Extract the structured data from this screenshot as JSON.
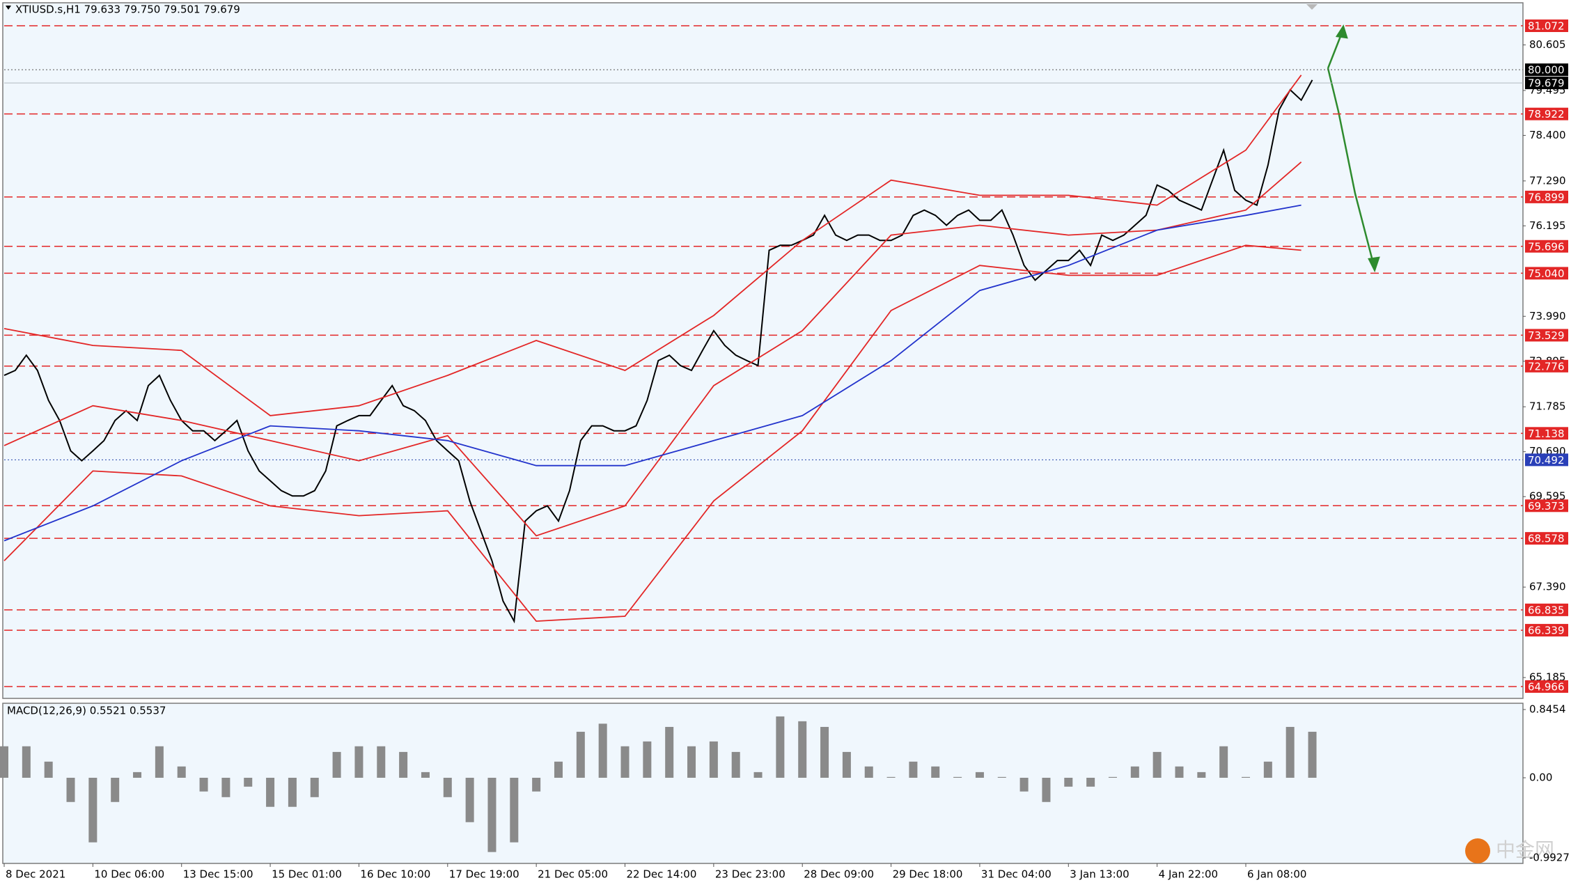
{
  "chart_data": [
    {
      "type": "line",
      "title": "XTIUSD.s,H1  79.633 79.750 79.501 79.679",
      "xlim": [
        0,
        137
      ],
      "ylim": [
        64.677,
        81.632
      ],
      "xticks": [
        {
          "value": 0,
          "label": "8 Dec 2021"
        },
        {
          "value": 8,
          "label": "10 Dec 06:00"
        },
        {
          "value": 16,
          "label": "13 Dec 15:00"
        },
        {
          "value": 24,
          "label": "15 Dec 01:00"
        },
        {
          "value": 32,
          "label": "16 Dec 10:00"
        },
        {
          "value": 40,
          "label": "17 Dec 19:00"
        },
        {
          "value": 48,
          "label": "21 Dec 05:00"
        },
        {
          "value": 56,
          "label": "22 Dec 14:00"
        },
        {
          "value": 64,
          "label": "23 Dec 23:00"
        },
        {
          "value": 72,
          "label": "28 Dec 09:00"
        },
        {
          "value": 80,
          "label": "29 Dec 18:00"
        },
        {
          "value": 88,
          "label": "31 Dec 04:00"
        },
        {
          "value": 96,
          "label": "3 Jan 13:00"
        },
        {
          "value": 104,
          "label": "4 Jan 22:00"
        },
        {
          "value": 112,
          "label": "6 Jan 08:00"
        }
      ],
      "yticks": [
        80.605,
        79.495,
        {
          "value": 78.4,
          "label": "78.400"
        },
        {
          "value": 77.29,
          "label": "77.290"
        },
        76.195,
        {
          "value": 73.99,
          "label": "73.990"
        },
        72.895,
        71.785,
        {
          "value": 70.69,
          "label": "70.690"
        },
        69.595,
        {
          "value": 67.39,
          "label": "67.390"
        },
        65.185
      ],
      "levels": [
        81.072,
        78.922,
        76.899,
        75.696,
        {
          "value": 75.04,
          "label": "75.040"
        },
        73.529,
        72.776,
        71.138,
        69.373,
        68.578,
        66.835,
        66.339,
        64.966
      ],
      "level_color": "#e32626",
      "marks": [
        {
          "value": 80,
          "label": "80.000"
        },
        79.679
      ],
      "blue_level": 70.492,
      "series": [
        {
          "color": "#000000",
          "values": [
            72.55,
            72.67,
            73.04,
            72.67,
            71.94,
            71.45,
            70.71,
            70.47,
            70.71,
            70.96,
            71.45,
            71.69,
            71.45,
            72.3,
            72.55,
            71.94,
            71.45,
            71.2,
            71.2,
            70.96,
            71.2,
            71.45,
            70.71,
            70.22,
            69.98,
            69.74,
            69.61,
            69.61,
            69.74,
            70.22,
            71.32,
            71.45,
            71.57,
            71.57,
            71.94,
            72.3,
            71.81,
            71.69,
            71.45,
            70.96,
            70.71,
            70.47,
            69.49,
            68.76,
            68.03,
            67.05,
            66.56,
            69.0,
            69.25,
            69.37,
            69.0,
            69.74,
            70.96,
            71.32,
            71.32,
            71.2,
            71.2,
            71.32,
            71.94,
            72.91,
            73.04,
            72.79,
            72.67,
            73.16,
            73.64,
            73.28,
            73.04,
            72.91,
            72.79,
            75.6,
            75.72,
            75.72,
            75.84,
            75.97,
            76.45,
            75.97,
            75.84,
            75.97,
            75.97,
            75.84,
            75.84,
            75.97,
            76.45,
            76.58,
            76.45,
            76.21,
            76.45,
            76.58,
            76.33,
            76.33,
            76.58,
            75.97,
            75.23,
            74.87,
            75.11,
            75.35,
            75.35,
            75.6,
            75.23,
            75.97,
            75.84,
            75.97,
            76.21,
            76.45,
            77.19,
            77.06,
            76.82,
            76.7,
            76.58,
            77.31,
            78.04,
            77.06,
            76.82,
            76.7,
            77.67,
            79.02,
            79.51,
            79.26,
            79.75
          ]
        },
        {
          "color": "#e32626",
          "x": [
            0,
            8,
            16,
            24,
            32,
            40,
            48,
            56,
            64,
            72,
            80,
            88,
            96,
            104,
            112,
            117
          ],
          "values": [
            73.69,
            73.28,
            73.16,
            71.57,
            71.81,
            72.55,
            73.4,
            72.67,
            74.01,
            75.84,
            77.31,
            76.94,
            76.94,
            76.7,
            78.04,
            79.87
          ]
        },
        {
          "color": "#e32626",
          "x": [
            0,
            8,
            16,
            24,
            32,
            40,
            48,
            56,
            64,
            72,
            80,
            88,
            96,
            104,
            112,
            117
          ],
          "values": [
            70.84,
            71.81,
            71.45,
            70.96,
            70.47,
            71.08,
            68.64,
            69.37,
            72.3,
            73.64,
            75.97,
            76.21,
            75.97,
            76.09,
            76.58,
            77.75
          ]
        },
        {
          "color": "#e32626",
          "x": [
            0,
            8,
            16,
            24,
            32,
            40,
            48,
            56,
            64,
            72,
            80,
            88,
            96,
            104,
            112,
            117
          ],
          "values": [
            68.03,
            70.22,
            70.1,
            69.37,
            69.13,
            69.25,
            66.56,
            66.68,
            69.49,
            71.2,
            74.13,
            75.23,
            74.99,
            74.99,
            75.72,
            75.6
          ]
        },
        {
          "color": "#2233cc",
          "x": [
            0,
            8,
            16,
            24,
            32,
            40,
            48,
            56,
            64,
            72,
            80,
            88,
            96,
            104,
            112,
            117
          ],
          "values": [
            68.52,
            69.37,
            70.47,
            71.32,
            71.2,
            70.96,
            70.35,
            70.35,
            70.96,
            71.57,
            72.91,
            74.62,
            75.23,
            76.09,
            76.45,
            76.7
          ]
        }
      ]
    },
    {
      "type": "bar",
      "title": "MACD(12,26,9) 0.5521 0.5537",
      "xlim": [
        0,
        137
      ],
      "ylim": [
        -1.061,
        0.923
      ],
      "yticks": [
        0.8454,
        {
          "value": 0,
          "label": "0.00"
        },
        -0.9927
      ],
      "color": "#8a8a8a",
      "x": [
        0,
        2,
        4,
        6,
        8,
        10,
        12,
        14,
        16,
        18,
        20,
        22,
        24,
        26,
        28,
        30,
        32,
        34,
        36,
        38,
        40,
        42,
        44,
        46,
        48,
        50,
        52,
        54,
        56,
        58,
        60,
        62,
        64,
        66,
        68,
        70,
        72,
        74,
        76,
        78,
        80,
        82,
        84,
        86,
        88,
        90,
        92,
        94,
        96,
        98,
        100,
        102,
        104,
        106,
        108,
        110,
        112,
        114,
        116,
        118
      ],
      "values": [
        0.39,
        0.39,
        0.2,
        -0.3,
        -0.8,
        -0.3,
        0.07,
        0.39,
        0.14,
        -0.17,
        -0.24,
        -0.11,
        -0.36,
        -0.36,
        -0.24,
        0.32,
        0.39,
        0.39,
        0.32,
        0.07,
        -0.24,
        -0.55,
        -0.92,
        -0.8,
        -0.17,
        0.2,
        0.57,
        0.67,
        0.39,
        0.45,
        0.63,
        0.39,
        0.45,
        0.32,
        0.07,
        0.76,
        0.7,
        0.63,
        0.32,
        0.14,
        0.01,
        0.2,
        0.14,
        0.01,
        0.07,
        0.01,
        -0.17,
        -0.3,
        -0.11,
        -0.11,
        0.01,
        0.14,
        0.32,
        0.14,
        0.07,
        0.39,
        0.01,
        0.2,
        0.63,
        0.57
      ]
    }
  ],
  "watermark": "中金网"
}
